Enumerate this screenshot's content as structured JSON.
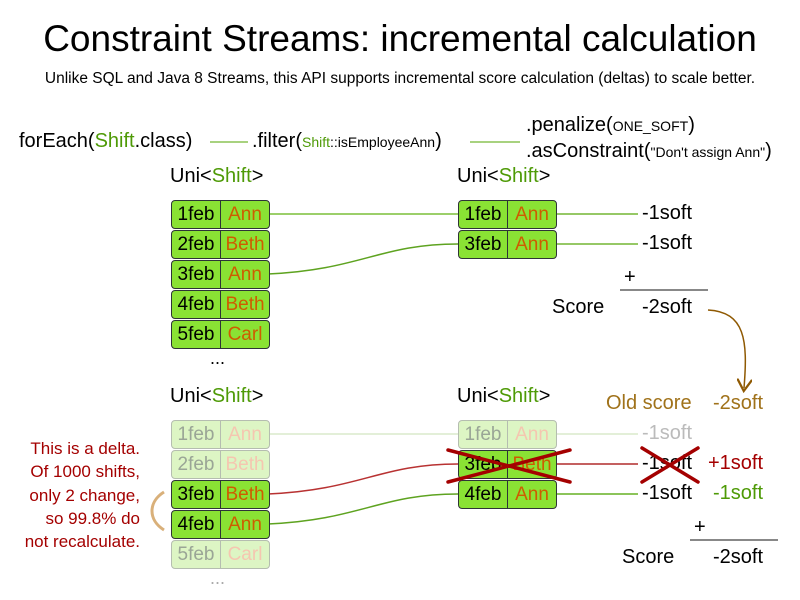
{
  "title": "Constraint Streams: incremental calculation",
  "subtitle": "Unlike SQL and Java 8 Streams, this API supports incremental score calculation (deltas) to scale better.",
  "code": {
    "for_each_pre": "forEach(",
    "for_each_cls": "Shift",
    ".class_post": ".class)",
    "filter_pre": ".filter(",
    "filter_cls": "Shift",
    "filter_arg": "::isEmployeeAnn",
    "filter_post": ")",
    "penalize_pre": ".penalize(",
    "penalize_arg": "ONE_SOFT",
    "penalize_post": ")",
    "constraint_pre": ".asConstraint(",
    "constraint_arg": "\"Don't assign Ann\"",
    "constraint_post": ")"
  },
  "uni": {
    "pre": "Uni<",
    "cls": "Shift",
    "post": ">"
  },
  "top": {
    "source": [
      {
        "date": "1feb",
        "name": "Ann"
      },
      {
        "date": "2feb",
        "name": "Beth"
      },
      {
        "date": "3feb",
        "name": "Ann"
      },
      {
        "date": "4feb",
        "name": "Beth"
      },
      {
        "date": "5feb",
        "name": "Carl"
      }
    ],
    "ellipsis": "...",
    "filtered": [
      {
        "date": "1feb",
        "name": "Ann",
        "score": "-1soft"
      },
      {
        "date": "3feb",
        "name": "Ann",
        "score": "-1soft"
      }
    ],
    "plus": "+",
    "score_label": "Score",
    "score_value": "-2soft"
  },
  "bottom": {
    "old_score_label": "Old score",
    "old_score_value": "-2soft",
    "source": [
      {
        "date": "1feb",
        "name": "Ann"
      },
      {
        "date": "2feb",
        "name": "Beth"
      },
      {
        "date": "3feb",
        "name": "Beth"
      },
      {
        "date": "4feb",
        "name": "Ann"
      },
      {
        "date": "5feb",
        "name": "Carl"
      }
    ],
    "ellipsis": "...",
    "filtered": [
      {
        "date": "1feb",
        "name": "Ann",
        "score": "-1soft"
      },
      {
        "date": "3feb",
        "name": "Beth",
        "score": "-1soft",
        "delta": "+1soft"
      },
      {
        "date": "4feb",
        "name": "Ann",
        "score": "-1soft",
        "delta": "-1soft"
      }
    ],
    "plus": "+",
    "score_label": "Score",
    "score_value": "-2soft",
    "note": "This is a delta.\nOf 1000 shifts,\nonly 2 change,\nso 99.8% do\nnot recalculate."
  },
  "colors": {
    "cell": "#8ae234",
    "name": "#ce5c00",
    "accent_green": "#4e9a06",
    "removed_red": "#a40000",
    "old_score": "#a0721a"
  }
}
